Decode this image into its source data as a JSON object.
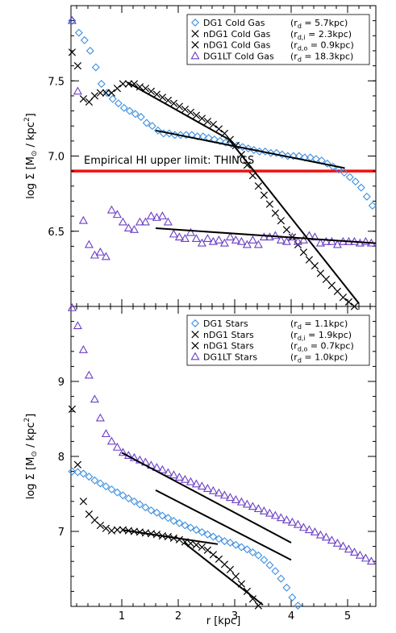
{
  "chart_data": [
    {
      "type": "scatter",
      "panel": "top",
      "title": "",
      "xlabel": "",
      "ylabel_main": "log Σ [M",
      "ylabel_unit": " / kpc",
      "ylim": [
        6.0,
        8.0
      ],
      "xlim": [
        0.1,
        5.5
      ],
      "yticks": [
        6.5,
        7.0,
        7.5
      ],
      "ytick_labels": [
        "6.5",
        "7.0",
        "7.5"
      ],
      "legend_position": "top-right",
      "colors": {
        "blue": "#3d8fe0",
        "black": "#000000",
        "purple": "#6b3fc4",
        "red": "#ee1111"
      },
      "annotation": {
        "text": "Empirical HI upper limit: THINGS",
        "y": 6.9
      },
      "legend": [
        {
          "marker": "diamond",
          "color": "#3d8fe0",
          "name": "DG1 Cold Gas",
          "rlabel": "(r",
          "rsub": "d",
          "rval": " = 5.7kpc)"
        },
        {
          "marker": "x",
          "color": "#000000",
          "name": "nDG1 Cold Gas",
          "rlabel": "(r",
          "rsub": "d,i",
          "rval": " = 2.3kpc)"
        },
        {
          "marker": "x",
          "color": "#000000",
          "name": "nDG1 Cold Gas",
          "rlabel": "(r",
          "rsub": "d,o",
          "rval": " = 0.9kpc)"
        },
        {
          "marker": "triangle",
          "color": "#6b3fc4",
          "name": "DG1LT Cold Gas",
          "rlabel": "(r",
          "rsub": "d",
          "rval": " = 18.3kpc)"
        }
      ],
      "series": [
        {
          "marker": "diamond",
          "color": "#3d8fe0",
          "x": [
            0.12,
            0.24,
            0.34,
            0.44,
            0.54,
            0.64,
            0.74,
            0.84,
            0.94,
            1.04,
            1.14,
            1.24,
            1.34,
            1.44,
            1.54,
            1.64,
            1.74,
            1.84,
            1.94,
            2.04,
            2.14,
            2.24,
            2.34,
            2.44,
            2.54,
            2.64,
            2.74,
            2.84,
            2.94,
            3.04,
            3.14,
            3.24,
            3.34,
            3.44,
            3.54,
            3.64,
            3.74,
            3.84,
            3.94,
            4.04,
            4.14,
            4.24,
            4.34,
            4.44,
            4.54,
            4.64,
            4.74,
            4.84,
            4.94,
            5.04,
            5.14,
            5.24,
            5.34,
            5.44
          ],
          "y": [
            7.9,
            7.82,
            7.77,
            7.7,
            7.59,
            7.48,
            7.42,
            7.38,
            7.35,
            7.32,
            7.3,
            7.28,
            7.26,
            7.22,
            7.2,
            7.17,
            7.15,
            7.15,
            7.14,
            7.14,
            7.14,
            7.14,
            7.13,
            7.13,
            7.12,
            7.11,
            7.1,
            7.09,
            7.08,
            7.07,
            7.06,
            7.05,
            7.04,
            7.03,
            7.03,
            7.02,
            7.02,
            7.01,
            7.0,
            7.0,
            7.0,
            6.99,
            6.99,
            6.98,
            6.97,
            6.95,
            6.93,
            6.91,
            6.89,
            6.86,
            6.83,
            6.79,
            6.73,
            6.67
          ]
        },
        {
          "marker": "x",
          "color": "#000000",
          "x": [
            0.12,
            0.22,
            0.32,
            0.42,
            0.52,
            0.62,
            0.72,
            0.82,
            0.92,
            1.02,
            1.12,
            1.22,
            1.32,
            1.42,
            1.52,
            1.62,
            1.72,
            1.82,
            1.92,
            2.02,
            2.12,
            2.22,
            2.32,
            2.42,
            2.52,
            2.62,
            2.72,
            2.82,
            2.92,
            3.02,
            3.12,
            3.22,
            3.32,
            3.42,
            3.52,
            3.62,
            3.72,
            3.82,
            3.92,
            4.02,
            4.12,
            4.22,
            4.32,
            4.42,
            4.52,
            4.62,
            4.72,
            4.82,
            4.92,
            5.02,
            5.12
          ],
          "y": [
            7.69,
            7.6,
            7.38,
            7.36,
            7.4,
            7.42,
            7.42,
            7.42,
            7.45,
            7.48,
            7.48,
            7.48,
            7.46,
            7.45,
            7.43,
            7.41,
            7.39,
            7.37,
            7.35,
            7.33,
            7.31,
            7.29,
            7.27,
            7.25,
            7.23,
            7.21,
            7.18,
            7.15,
            7.11,
            7.07,
            7.01,
            6.94,
            6.87,
            6.8,
            6.74,
            6.68,
            6.62,
            6.57,
            6.51,
            6.46,
            6.41,
            6.36,
            6.31,
            6.27,
            6.22,
            6.18,
            6.14,
            6.1,
            6.06,
            6.03,
            6.0
          ]
        },
        {
          "marker": "triangle",
          "color": "#6b3fc4",
          "x": [
            0.12,
            0.22,
            0.32,
            0.42,
            0.52,
            0.62,
            0.72,
            0.82,
            0.92,
            1.02,
            1.12,
            1.22,
            1.32,
            1.42,
            1.52,
            1.62,
            1.72,
            1.82,
            1.92,
            2.02,
            2.12,
            2.22,
            2.32,
            2.42,
            2.52,
            2.62,
            2.72,
            2.82,
            2.92,
            3.02,
            3.12,
            3.22,
            3.32,
            3.42,
            3.52,
            3.62,
            3.72,
            3.82,
            3.92,
            4.02,
            4.12,
            4.22,
            4.32,
            4.42,
            4.52,
            4.62,
            4.72,
            4.82,
            4.92,
            5.02,
            5.12,
            5.22,
            5.32,
            5.42
          ],
          "y": [
            7.9,
            7.43,
            6.57,
            6.41,
            6.34,
            6.36,
            6.33,
            6.64,
            6.61,
            6.56,
            6.52,
            6.51,
            6.56,
            6.56,
            6.6,
            6.59,
            6.6,
            6.56,
            6.48,
            6.46,
            6.45,
            6.49,
            6.45,
            6.42,
            6.45,
            6.43,
            6.44,
            6.42,
            6.46,
            6.44,
            6.43,
            6.41,
            6.44,
            6.41,
            6.46,
            6.46,
            6.47,
            6.44,
            6.43,
            6.46,
            6.43,
            6.44,
            6.47,
            6.46,
            6.42,
            6.43,
            6.43,
            6.41,
            6.43,
            6.43,
            6.43,
            6.42,
            6.43,
            6.42
          ]
        }
      ],
      "fit_lines": [
        {
          "x": [
            1.6,
            4.95
          ],
          "y": [
            7.17,
            6.92
          ]
        },
        {
          "x": [
            1.1,
            2.9
          ],
          "y": [
            7.49,
            7.11
          ]
        },
        {
          "x": [
            2.9,
            5.2
          ],
          "y": [
            7.11,
            6.02
          ]
        },
        {
          "x": [
            1.6,
            5.5
          ],
          "y": [
            6.52,
            6.42
          ]
        }
      ]
    },
    {
      "type": "scatter",
      "panel": "bottom",
      "title": "",
      "xlabel": "r [kpc]",
      "ylabel_main": "log Σ [M",
      "ylabel_unit": " / kpc",
      "xlim": [
        0.1,
        5.5
      ],
      "ylim": [
        6.0,
        10.0
      ],
      "xticks": [
        1,
        2,
        3,
        4,
        5
      ],
      "xtick_labels": [
        "1",
        "2",
        "3",
        "4",
        "5"
      ],
      "yticks": [
        7,
        8,
        9
      ],
      "ytick_labels": [
        "7",
        "8",
        "9"
      ],
      "legend_position": "top-right",
      "legend": [
        {
          "marker": "diamond",
          "color": "#3d8fe0",
          "name": "DG1 Stars",
          "rlabel": "(r",
          "rsub": "d",
          "rval": " = 1.1kpc)"
        },
        {
          "marker": "x",
          "color": "#000000",
          "name": "nDG1 Stars",
          "rlabel": "(r",
          "rsub": "d,i",
          "rval": " = 1.9kpc)"
        },
        {
          "marker": "x",
          "color": "#000000",
          "name": "nDG1 Stars",
          "rlabel": "(r",
          "rsub": "d,o",
          "rval": " = 0.7kpc)"
        },
        {
          "marker": "triangle",
          "color": "#6b3fc4",
          "name": "DG1LT Stars",
          "rlabel": "(r",
          "rsub": "d",
          "rval": " = 1.0kpc)"
        }
      ],
      "series": [
        {
          "marker": "diamond",
          "color": "#3d8fe0",
          "x": [
            0.12,
            0.22,
            0.32,
            0.42,
            0.52,
            0.62,
            0.72,
            0.82,
            0.92,
            1.02,
            1.12,
            1.22,
            1.32,
            1.42,
            1.52,
            1.62,
            1.72,
            1.82,
            1.92,
            2.02,
            2.12,
            2.22,
            2.32,
            2.42,
            2.52,
            2.62,
            2.72,
            2.82,
            2.92,
            3.02,
            3.12,
            3.22,
            3.32,
            3.42,
            3.52,
            3.62,
            3.72,
            3.82,
            3.92,
            4.02,
            4.12
          ],
          "y": [
            7.8,
            7.79,
            7.77,
            7.73,
            7.68,
            7.64,
            7.6,
            7.56,
            7.52,
            7.48,
            7.44,
            7.4,
            7.36,
            7.32,
            7.28,
            7.25,
            7.21,
            7.18,
            7.14,
            7.11,
            7.08,
            7.05,
            7.02,
            6.99,
            6.96,
            6.93,
            6.9,
            6.87,
            6.85,
            6.82,
            6.79,
            6.76,
            6.72,
            6.68,
            6.62,
            6.55,
            6.47,
            6.37,
            6.25,
            6.12,
            6.01
          ]
        },
        {
          "marker": "x",
          "color": "#000000",
          "x": [
            0.12,
            0.22,
            0.32,
            0.42,
            0.52,
            0.62,
            0.72,
            0.82,
            0.92,
            1.02,
            1.12,
            1.22,
            1.32,
            1.42,
            1.52,
            1.62,
            1.72,
            1.82,
            1.92,
            2.02,
            2.12,
            2.22,
            2.32,
            2.42,
            2.52,
            2.62,
            2.72,
            2.82,
            2.92,
            3.02,
            3.12,
            3.22,
            3.32,
            3.42
          ],
          "y": [
            8.63,
            7.89,
            7.4,
            7.23,
            7.15,
            7.08,
            7.04,
            7.01,
            7.02,
            7.02,
            7.01,
            7.0,
            6.99,
            6.98,
            6.97,
            6.96,
            6.94,
            6.93,
            6.91,
            6.89,
            6.86,
            6.84,
            6.82,
            6.79,
            6.75,
            6.69,
            6.63,
            6.56,
            6.49,
            6.4,
            6.3,
            6.2,
            6.1,
            6.01
          ]
        },
        {
          "marker": "triangle",
          "color": "#6b3fc4",
          "x": [
            0.12,
            0.22,
            0.32,
            0.42,
            0.52,
            0.62,
            0.72,
            0.82,
            0.92,
            1.02,
            1.12,
            1.22,
            1.32,
            1.42,
            1.52,
            1.62,
            1.72,
            1.82,
            1.92,
            2.02,
            2.12,
            2.22,
            2.32,
            2.42,
            2.52,
            2.62,
            2.72,
            2.82,
            2.92,
            3.02,
            3.12,
            3.22,
            3.32,
            3.42,
            3.52,
            3.62,
            3.72,
            3.82,
            3.92,
            4.02,
            4.12,
            4.22,
            4.32,
            4.42,
            4.52,
            4.62,
            4.72,
            4.82,
            4.92,
            5.02,
            5.12,
            5.22,
            5.32,
            5.42
          ],
          "y": [
            9.98,
            9.74,
            9.42,
            9.08,
            8.76,
            8.51,
            8.3,
            8.2,
            8.12,
            8.05,
            8.01,
            7.98,
            7.95,
            7.92,
            7.88,
            7.85,
            7.82,
            7.78,
            7.75,
            7.72,
            7.69,
            7.66,
            7.63,
            7.6,
            7.57,
            7.54,
            7.51,
            7.48,
            7.45,
            7.42,
            7.39,
            7.36,
            7.33,
            7.3,
            7.27,
            7.24,
            7.21,
            7.18,
            7.15,
            7.12,
            7.09,
            7.05,
            7.02,
            6.99,
            6.95,
            6.92,
            6.88,
            6.84,
            6.8,
            6.76,
            6.72,
            6.68,
            6.64,
            6.6
          ]
        }
      ],
      "fit_lines": [
        {
          "x": [
            1.6,
            4.0
          ],
          "y": [
            7.55,
            6.62
          ]
        },
        {
          "x": [
            1.0,
            2.7
          ],
          "y": [
            7.02,
            6.83
          ]
        },
        {
          "x": [
            2.1,
            3.5
          ],
          "y": [
            6.85,
            6.02
          ]
        },
        {
          "x": [
            1.0,
            4.0
          ],
          "y": [
            8.05,
            6.85
          ]
        }
      ]
    }
  ]
}
